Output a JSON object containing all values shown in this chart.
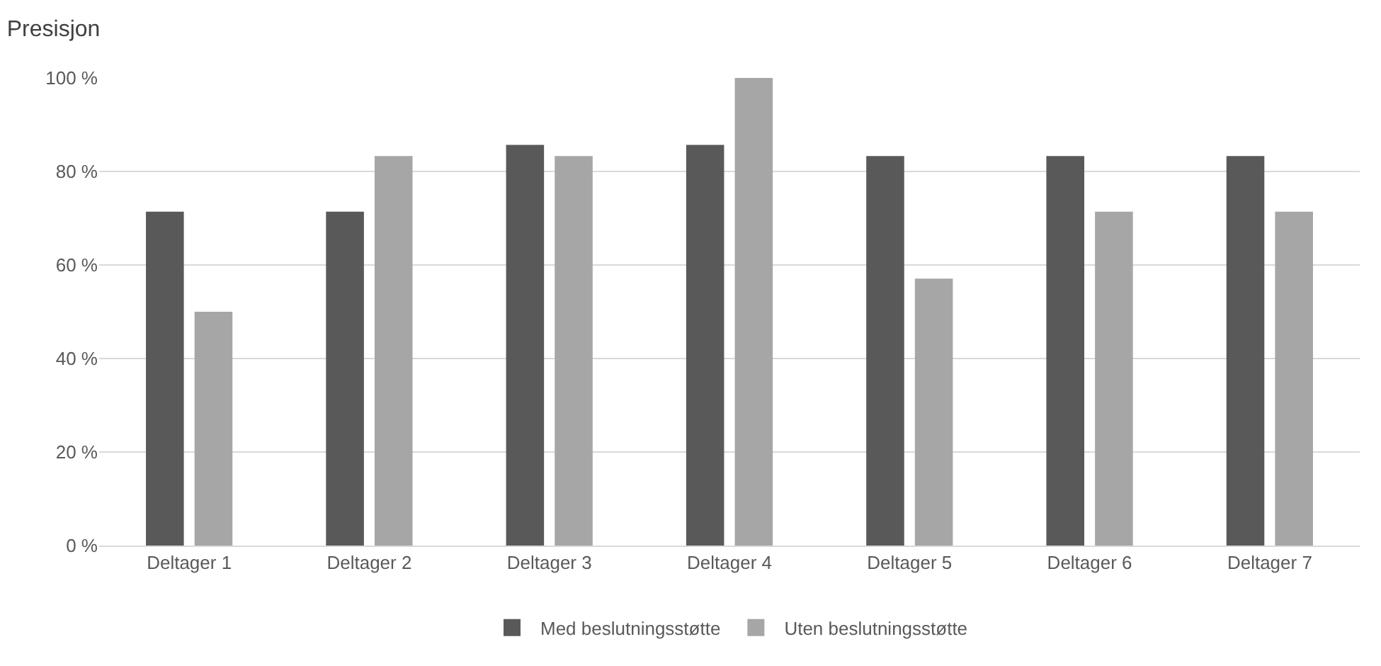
{
  "chart_data": {
    "type": "bar",
    "title": "Presisjon",
    "categories": [
      "Deltager 1",
      "Deltager 2",
      "Deltager 3",
      "Deltager 4",
      "Deltager 5",
      "Deltager 6",
      "Deltager 7"
    ],
    "series": [
      {
        "name": "Med beslutningsstøtte",
        "color": "#595959",
        "values": [
          71.4,
          71.4,
          85.7,
          85.7,
          83.3,
          83.3,
          83.3
        ]
      },
      {
        "name": "Uten beslutningsstøtte",
        "color": "#a6a6a6",
        "values": [
          50,
          83.3,
          83.3,
          100,
          57.1,
          71.4,
          71.4
        ]
      }
    ],
    "ylim": [
      0,
      100
    ],
    "yticks": [
      {
        "value": 0,
        "label": "0 %"
      },
      {
        "value": 20,
        "label": "20 %"
      },
      {
        "value": 40,
        "label": "40 %"
      },
      {
        "value": 60,
        "label": "60 %"
      },
      {
        "value": 80,
        "label": "80 %"
      },
      {
        "value": 100,
        "label": "100 %"
      }
    ],
    "grid": "y",
    "legend": "bottom"
  }
}
